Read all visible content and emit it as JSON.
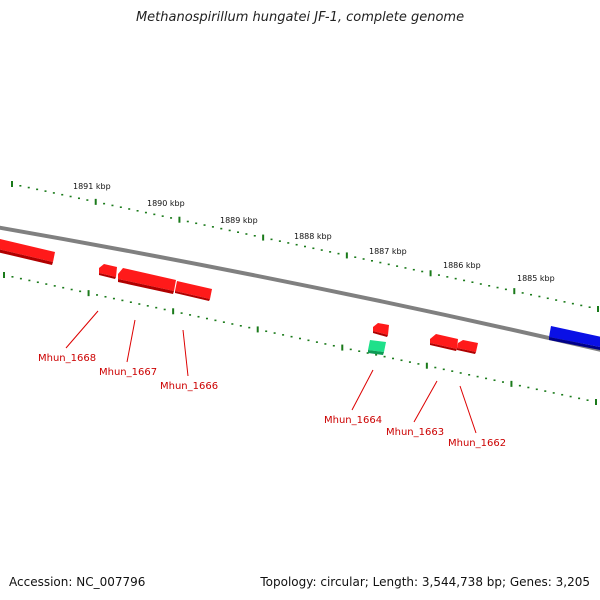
{
  "title": "Methanospirillum hungatei JF-1, complete genome",
  "footer": {
    "accession": "Accession: NC_007796",
    "summary": "Topology: circular; Length: 3,544,738 bp; Genes: 3,205"
  },
  "colors": {
    "backbone": "#808080",
    "tick": "#1a7a1a",
    "gene_red": "#ff1010",
    "gene_blue": "#0a10e6",
    "gene_green": "#19d87a",
    "label_line": "#dd0000",
    "label_text": "#cc0000"
  },
  "scale_ticks": [
    {
      "text": "1891 kbp"
    },
    {
      "text": "1890 kbp"
    },
    {
      "text": "1889 kbp"
    },
    {
      "text": "1888 kbp"
    },
    {
      "text": "1887 kbp"
    },
    {
      "text": "1886 kbp"
    },
    {
      "text": "1885 kbp"
    }
  ],
  "gene_labels": [
    {
      "text": "Mhun_1668"
    },
    {
      "text": "Mhun_1667"
    },
    {
      "text": "Mhun_1666"
    },
    {
      "text": "Mhun_1664"
    },
    {
      "text": "Mhun_1663"
    },
    {
      "text": "Mhun_1662"
    }
  ]
}
